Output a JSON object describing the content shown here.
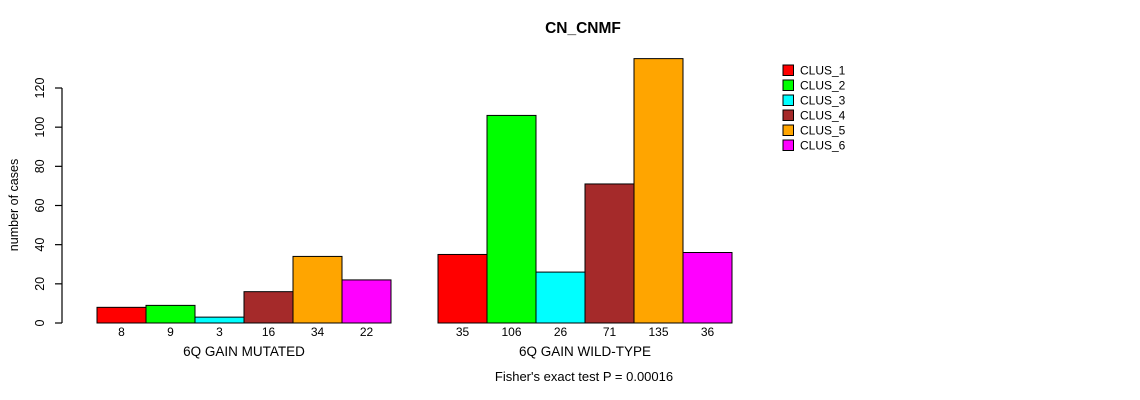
{
  "title": "CN_CNMF",
  "chart_data": {
    "type": "bar",
    "title": "CN_CNMF",
    "ylabel": "number of cases",
    "xlabel": "",
    "ylim": [
      0,
      135
    ],
    "yticks": [
      0,
      20,
      40,
      60,
      80,
      100,
      120
    ],
    "grid": false,
    "legend_position": "right",
    "bar_value_labels_shown": true,
    "categories": [
      "6Q GAIN MUTATED",
      "6Q GAIN WILD-TYPE"
    ],
    "series": [
      {
        "name": "CLUS_1",
        "color": "#FF0000",
        "values": [
          8,
          35
        ]
      },
      {
        "name": "CLUS_2",
        "color": "#00FF00",
        "values": [
          9,
          106
        ]
      },
      {
        "name": "CLUS_3",
        "color": "#00FFFF",
        "values": [
          3,
          26
        ]
      },
      {
        "name": "CLUS_4",
        "color": "#A52A2A",
        "values": [
          16,
          71
        ]
      },
      {
        "name": "CLUS_5",
        "color": "#FFA500",
        "values": [
          34,
          135
        ]
      },
      {
        "name": "CLUS_6",
        "color": "#FF00FF",
        "values": [
          22,
          36
        ]
      }
    ],
    "annotation": "Fisher's exact test P = 0.00016",
    "colors": {
      "bar_border": "#000000",
      "axis": "#000000",
      "background": "#FFFFFF"
    }
  }
}
